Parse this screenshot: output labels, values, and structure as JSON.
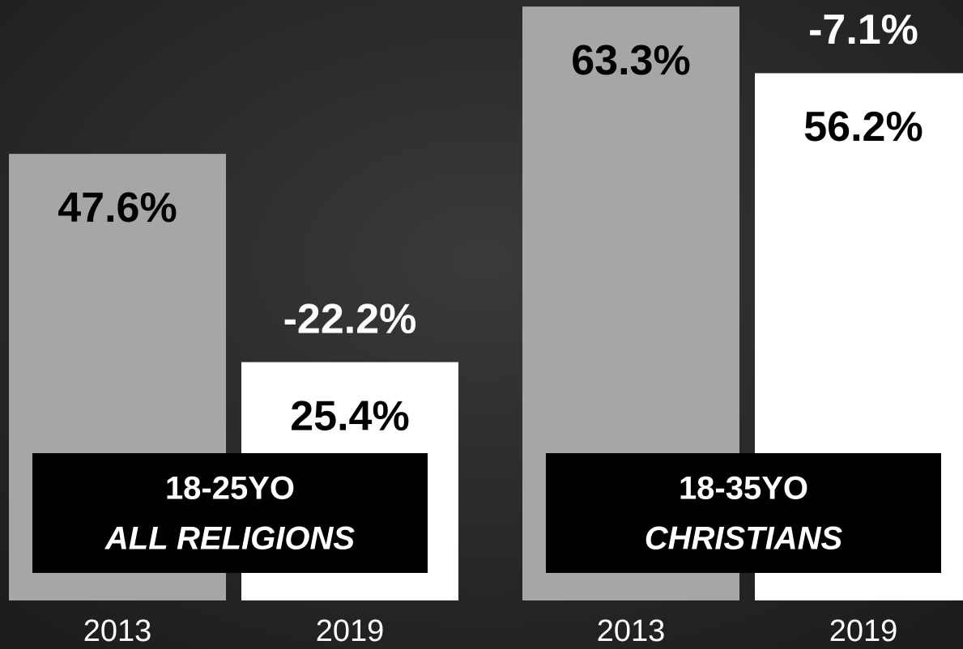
{
  "chart_data": [
    {
      "type": "bar",
      "title": "18-25YO",
      "subtitle": "ALL RELIGIONS",
      "categories": [
        "2013",
        "2019"
      ],
      "values": [
        47.6,
        25.4
      ],
      "value_labels": [
        "47.6%",
        "25.4%"
      ],
      "colors": [
        "#a6a6a6",
        "#ffffff"
      ],
      "annotation": "-22.2%",
      "ylim": [
        0,
        64
      ]
    },
    {
      "type": "bar",
      "title": "18-35YO",
      "subtitle": "CHRISTIANS",
      "categories": [
        "2013",
        "2019"
      ],
      "values": [
        63.3,
        56.2
      ],
      "value_labels": [
        "63.3%",
        "56.2%"
      ],
      "colors": [
        "#a6a6a6",
        "#ffffff"
      ],
      "annotation": "-7.1%",
      "ylim": [
        0,
        64
      ]
    }
  ]
}
